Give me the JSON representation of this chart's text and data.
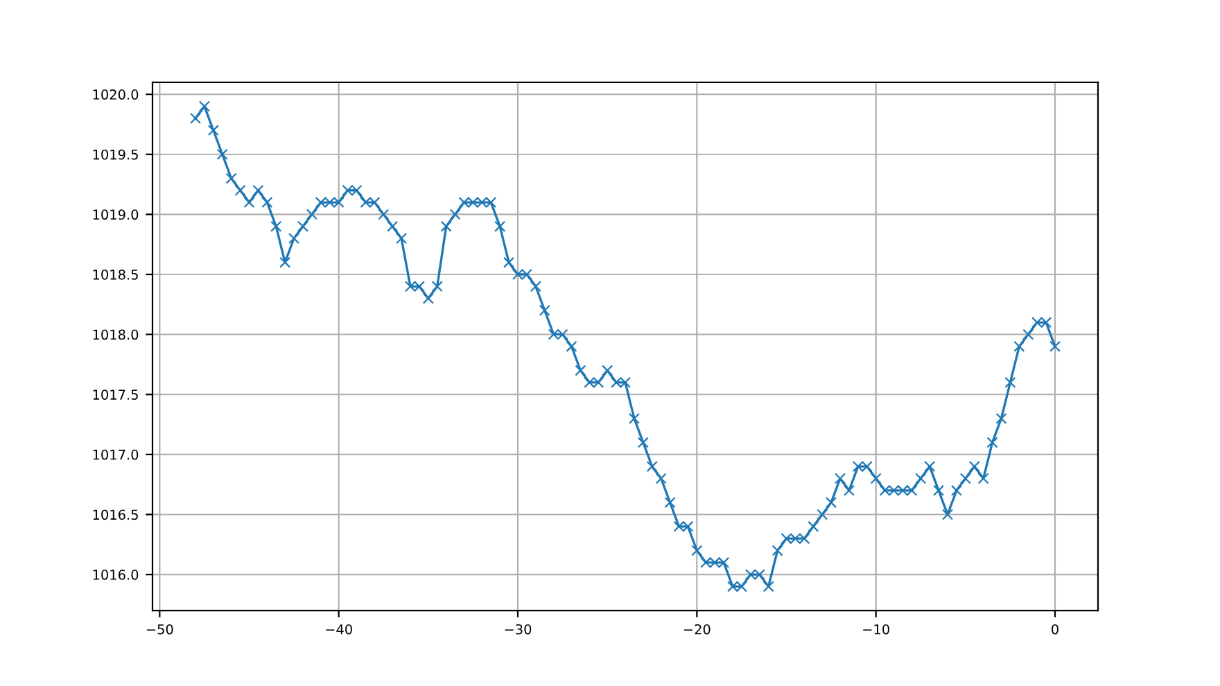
{
  "chart_data": {
    "type": "line",
    "x": [
      -48,
      -47.5,
      -47,
      -46.5,
      -46,
      -45.5,
      -45,
      -44.5,
      -44,
      -43.5,
      -43,
      -42.5,
      -42,
      -41.5,
      -41,
      -40.5,
      -40,
      -39.5,
      -39,
      -38.5,
      -38,
      -37.5,
      -37,
      -36.5,
      -36,
      -35.5,
      -35,
      -34.5,
      -34,
      -33.5,
      -33,
      -32.5,
      -32,
      -31.5,
      -31,
      -30.5,
      -30,
      -29.5,
      -29,
      -28.5,
      -28,
      -27.5,
      -27,
      -26.5,
      -26,
      -25.5,
      -25,
      -24.5,
      -24,
      -23.5,
      -23,
      -22.5,
      -22,
      -21.5,
      -21,
      -20.5,
      -20,
      -19.5,
      -19,
      -18.5,
      -18,
      -17.5,
      -17,
      -16.5,
      -16,
      -15.5,
      -15,
      -14.5,
      -14,
      -13.5,
      -13,
      -12.5,
      -12,
      -11.5,
      -11,
      -10.5,
      -10,
      -9.5,
      -9,
      -8.5,
      -8,
      -7.5,
      -7,
      -6.5,
      -6,
      -5.5,
      -5,
      -4.5,
      -4,
      -3.5,
      -3,
      -2.5,
      -2,
      -1.5,
      -1,
      -0.5,
      0
    ],
    "series": [
      {
        "color": "#1f77b4",
        "values": [
          1019.8,
          1019.9,
          1019.7,
          1019.5,
          1019.3,
          1019.2,
          1019.1,
          1019.2,
          1019.1,
          1018.9,
          1018.6,
          1018.8,
          1018.9,
          1019.0,
          1019.1,
          1019.1,
          1019.1,
          1019.2,
          1019.2,
          1019.1,
          1019.1,
          1019.0,
          1018.9,
          1018.8,
          1018.4,
          1018.4,
          1018.3,
          1018.4,
          1018.9,
          1019.0,
          1019.1,
          1019.1,
          1019.1,
          1019.1,
          1018.9,
          1018.6,
          1018.5,
          1018.5,
          1018.4,
          1018.2,
          1018.0,
          1018.0,
          1017.9,
          1017.7,
          1017.6,
          1017.6,
          1017.7,
          1017.6,
          1017.6,
          1017.3,
          1017.1,
          1016.9,
          1016.8,
          1016.6,
          1016.4,
          1016.4,
          1016.2,
          1016.1,
          1016.1,
          1016.1,
          1015.9,
          1015.9,
          1016.0,
          1016.0,
          1015.9,
          1016.2,
          1016.3,
          1016.3,
          1016.3,
          1016.4,
          1016.5,
          1016.6,
          1016.8,
          1016.7,
          1016.9,
          1016.9,
          1016.8,
          1016.7,
          1016.7,
          1016.7,
          1016.7,
          1016.8,
          1016.9,
          1016.7,
          1016.5,
          1016.7,
          1016.8,
          1016.9,
          1016.8,
          1017.1,
          1017.3,
          1017.6,
          1017.9,
          1018.0,
          1018.1,
          1018.1,
          1017.9
        ]
      }
    ],
    "xlim": [
      -50.4,
      2.4
    ],
    "ylim": [
      1015.7,
      1020.1
    ],
    "xticks": [
      {
        "value": -50,
        "label": "−50"
      },
      {
        "value": -40,
        "label": "−40"
      },
      {
        "value": -30,
        "label": "−30"
      },
      {
        "value": -20,
        "label": "−20"
      },
      {
        "value": -10,
        "label": "−10"
      },
      0
    ],
    "yticks": [
      {
        "value": 1016,
        "label": "1016.0"
      },
      {
        "value": 1016.5,
        "label": "1016.5"
      },
      {
        "value": 1017,
        "label": "1017.0"
      },
      {
        "value": 1017.5,
        "label": "1017.5"
      },
      {
        "value": 1018,
        "label": "1018.0"
      },
      {
        "value": 1018.5,
        "label": "1018.5"
      },
      {
        "value": 1019,
        "label": "1019.0"
      },
      {
        "value": 1019.5,
        "label": "1019.5"
      },
      {
        "value": 1020,
        "label": "1020.0"
      }
    ],
    "grid": true,
    "marker": "cross",
    "line_style": "solid"
  }
}
